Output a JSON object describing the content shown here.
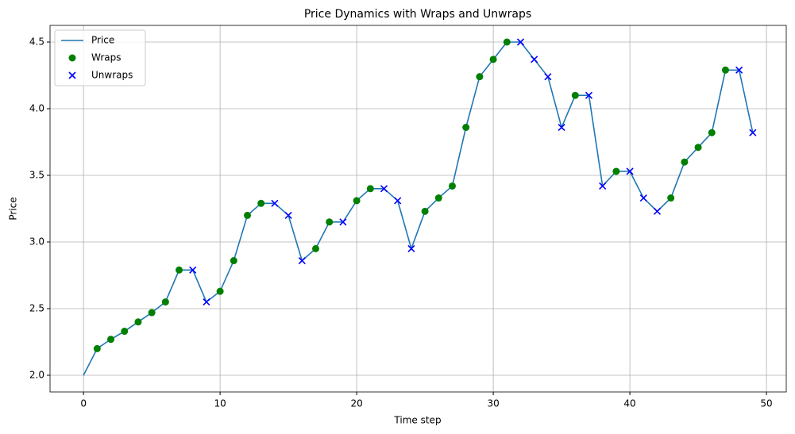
{
  "chart_data": {
    "type": "line",
    "title": "Price Dynamics with Wraps and Unwraps",
    "x_label": "Time step",
    "y_label": "Price",
    "xlim": [
      -2.45,
      51.45
    ],
    "ylim": [
      1.875,
      4.625
    ],
    "xticks": [
      0,
      10,
      20,
      30,
      40,
      50
    ],
    "yticks": [
      {
        "value": 2,
        "label": "2.0"
      },
      2.5,
      {
        "value": 3,
        "label": "3.0"
      },
      3.5,
      {
        "value": 4,
        "label": "4.0"
      },
      4.5
    ],
    "grid": true,
    "legend": "upper left",
    "series": [
      {
        "name": "Price",
        "type": "line",
        "color": "#1f77b4",
        "x": [
          0,
          1,
          2,
          3,
          4,
          5,
          6,
          7,
          8,
          9,
          10,
          11,
          12,
          13,
          14,
          15,
          16,
          17,
          18,
          19,
          20,
          21,
          22,
          23,
          24,
          25,
          26,
          27,
          28,
          29,
          30,
          31,
          32,
          33,
          34,
          35,
          36,
          37,
          38,
          39,
          40,
          41,
          42,
          43,
          44,
          45,
          46,
          47,
          48,
          49
        ],
        "values": [
          2.0,
          2.2,
          2.27,
          2.33,
          2.4,
          2.47,
          2.55,
          2.79,
          2.79,
          2.55,
          2.63,
          2.86,
          3.2,
          3.29,
          3.29,
          3.2,
          2.86,
          2.95,
          3.15,
          3.15,
          3.31,
          3.4,
          3.4,
          3.31,
          2.95,
          3.23,
          3.33,
          3.42,
          3.86,
          4.24,
          4.37,
          4.5,
          4.5,
          4.37,
          4.24,
          3.86,
          4.1,
          4.1,
          3.42,
          3.53,
          3.53,
          3.33,
          3.23,
          3.33,
          3.6,
          3.71,
          3.82,
          4.29,
          4.29,
          3.82
        ]
      },
      {
        "name": "Wraps",
        "type": "scatter",
        "marker": "o",
        "color": "#008000",
        "x": [
          1,
          2,
          3,
          4,
          5,
          6,
          7,
          10,
          11,
          12,
          13,
          17,
          18,
          20,
          21,
          25,
          26,
          27,
          28,
          29,
          30,
          31,
          36,
          39,
          43,
          44,
          45,
          46,
          47
        ],
        "values": [
          2.2,
          2.27,
          2.33,
          2.4,
          2.47,
          2.55,
          2.79,
          2.63,
          2.86,
          3.2,
          3.29,
          2.95,
          3.15,
          3.31,
          3.4,
          3.23,
          3.33,
          3.42,
          3.86,
          4.24,
          4.37,
          4.5,
          4.1,
          3.53,
          3.33,
          3.6,
          3.71,
          3.82,
          4.29
        ]
      },
      {
        "name": "Unwraps",
        "type": "scatter",
        "marker": "x",
        "color": "#0000ff",
        "x": [
          8,
          9,
          14,
          15,
          16,
          19,
          22,
          23,
          24,
          32,
          33,
          34,
          35,
          37,
          38,
          40,
          41,
          42,
          48,
          49
        ],
        "values": [
          2.79,
          2.55,
          3.29,
          3.2,
          2.86,
          3.15,
          3.4,
          3.31,
          2.95,
          4.5,
          4.37,
          4.24,
          3.86,
          4.1,
          3.42,
          3.53,
          3.33,
          3.23,
          4.29,
          3.82
        ]
      }
    ]
  }
}
